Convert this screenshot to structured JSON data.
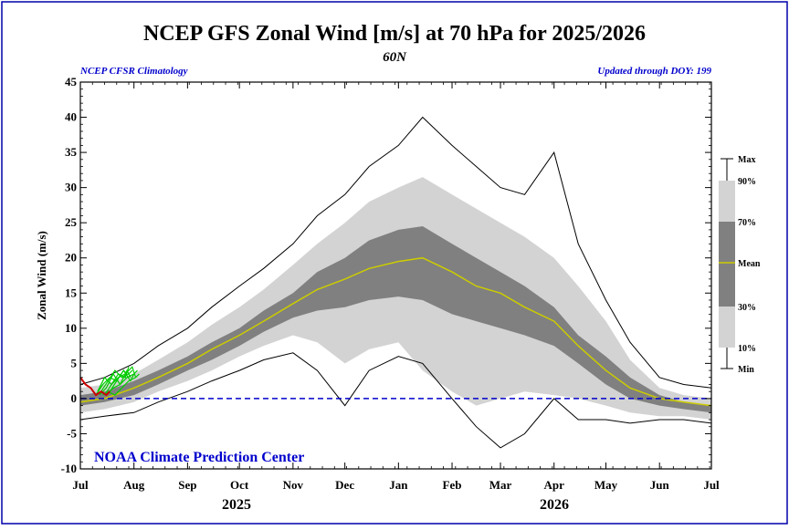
{
  "header": {
    "title": "NCEP GFS Zonal Wind [m/s] at 70 hPa for 2025/2026",
    "subtitle": "60N",
    "left_note": "NCEP CFSR Climatology",
    "right_note": "Updated through DOY: 199",
    "credit": "NOAA Climate Prediction Center"
  },
  "colors": {
    "outer_band": "#d3d3d3",
    "inner_band": "#808080",
    "mean": "#cccc00",
    "observed": "#cc0000",
    "forecast": "#00cc00",
    "zero_line": "#0000cc",
    "frame": "#0000aa"
  },
  "chart_data": {
    "type": "line",
    "title": "NCEP GFS Zonal Wind [m/s] at 70 hPa for 2025/2026",
    "subtitle": "60N",
    "ylabel": "Zonal Wind (m/s)",
    "xlabel": "",
    "ylim": [
      -10,
      45
    ],
    "yticks": [
      "-10",
      "-5",
      "0",
      "5",
      "10",
      "15",
      "20",
      "25",
      "30",
      "35",
      "40",
      "45"
    ],
    "xlim": [
      "2025-07-01",
      "2026-07-01"
    ],
    "xtick_labels": [
      "Jul",
      "Aug",
      "Sep",
      "Oct",
      "Nov",
      "Dec",
      "Jan",
      "Feb",
      "Mar",
      "Apr",
      "May",
      "Jun",
      "Jul"
    ],
    "xtick_dates": [
      "2025-07-01",
      "2025-08-01",
      "2025-09-01",
      "2025-10-01",
      "2025-11-01",
      "2025-12-01",
      "2026-01-01",
      "2026-02-01",
      "2026-03-01",
      "2026-04-01",
      "2026-05-01",
      "2026-06-01",
      "2026-07-01"
    ],
    "years": [
      "2025",
      "2026"
    ],
    "grid": false,
    "legend": {
      "placement": "right",
      "labels": [
        "Max",
        "90%",
        "70%",
        "Mean",
        "30%",
        "10%",
        "Min"
      ]
    },
    "x": [
      "2025-07-01",
      "2025-07-15",
      "2025-08-01",
      "2025-08-15",
      "2025-09-01",
      "2025-09-15",
      "2025-10-01",
      "2025-10-15",
      "2025-11-01",
      "2025-11-15",
      "2025-12-01",
      "2025-12-15",
      "2026-01-01",
      "2026-01-15",
      "2026-02-01",
      "2026-02-15",
      "2026-03-01",
      "2026-03-15",
      "2026-04-01",
      "2026-04-15",
      "2026-05-01",
      "2026-05-15",
      "2026-06-01",
      "2026-06-15",
      "2026-07-01"
    ],
    "series": [
      {
        "name": "Max",
        "values": [
          2,
          3,
          5,
          7.5,
          10,
          13,
          16,
          18.5,
          22,
          26,
          29,
          33,
          36,
          40,
          36,
          33,
          30,
          29,
          35,
          22,
          14,
          8,
          3,
          2,
          1.5
        ]
      },
      {
        "name": "90%",
        "values": [
          1.5,
          2,
          3.5,
          5.5,
          8,
          10.5,
          13,
          15.5,
          19,
          22,
          25,
          28,
          30,
          31.5,
          29,
          27,
          25,
          23,
          20,
          16,
          11,
          5.5,
          1.5,
          0.5,
          0
        ]
      },
      {
        "name": "70%",
        "values": [
          0.5,
          1,
          2.5,
          4,
          6,
          8,
          10,
          12.5,
          15,
          18,
          20,
          22.5,
          24,
          24.5,
          22,
          20,
          18,
          16,
          13,
          9,
          6,
          3,
          0.5,
          -0.5,
          -1
        ]
      },
      {
        "name": "Mean",
        "values": [
          -0.5,
          0,
          1.5,
          3,
          5,
          7,
          9,
          11,
          13.5,
          15.5,
          17,
          18.5,
          19.5,
          20,
          18,
          16,
          15,
          13,
          11,
          7.5,
          4,
          1.5,
          0,
          -0.5,
          -1
        ]
      },
      {
        "name": "30%",
        "values": [
          -1,
          -0.5,
          0.5,
          2,
          4,
          5.5,
          7.5,
          9.5,
          11.5,
          12.5,
          13,
          14,
          14.5,
          14,
          12,
          11,
          10,
          9,
          7.5,
          5,
          2,
          0,
          -1,
          -1.5,
          -2
        ]
      },
      {
        "name": "10%",
        "values": [
          -2,
          -1.5,
          -0.5,
          1,
          2.5,
          4,
          6,
          7.5,
          9,
          8,
          5,
          7,
          8,
          4,
          1,
          -1,
          0,
          1,
          0.5,
          0,
          -1,
          -2,
          -2.5,
          -2.5,
          -3
        ]
      },
      {
        "name": "Min",
        "values": [
          -3,
          -2.5,
          -2,
          -0.5,
          1,
          2.5,
          4,
          5.5,
          6.5,
          4,
          -1,
          4,
          6,
          5,
          0,
          -4,
          -7,
          -5,
          0,
          -3,
          -3,
          -3.5,
          -3,
          -3,
          -3.5
        ]
      }
    ],
    "observed": {
      "name": "2025 observed",
      "x": [
        "2025-07-01",
        "2025-07-04",
        "2025-07-07",
        "2025-07-10",
        "2025-07-13",
        "2025-07-16",
        "2025-07-18"
      ],
      "values": [
        3,
        2,
        1.5,
        0.5,
        1,
        0.5,
        1
      ]
    },
    "forecasts": {
      "name": "GFS forecasts",
      "members": [
        {
          "x": [
            "2025-07-10",
            "2025-07-14",
            "2025-07-18",
            "2025-07-22",
            "2025-07-26",
            "2025-07-28"
          ],
          "values": [
            0.5,
            2,
            3,
            2.5,
            4,
            3.5
          ]
        },
        {
          "x": [
            "2025-07-11",
            "2025-07-15",
            "2025-07-19",
            "2025-07-23",
            "2025-07-27",
            "2025-07-29"
          ],
          "values": [
            1,
            3,
            2,
            3.5,
            3,
            4.5
          ]
        },
        {
          "x": [
            "2025-07-12",
            "2025-07-16",
            "2025-07-20",
            "2025-07-24",
            "2025-07-28",
            "2025-07-30"
          ],
          "values": [
            0.5,
            1.5,
            3.5,
            2,
            4,
            3
          ]
        },
        {
          "x": [
            "2025-07-13",
            "2025-07-17",
            "2025-07-21",
            "2025-07-25",
            "2025-07-29",
            "2025-07-31"
          ],
          "values": [
            1,
            2.5,
            4,
            3,
            3.5,
            4
          ]
        },
        {
          "x": [
            "2025-07-14",
            "2025-07-18",
            "2025-07-22",
            "2025-07-26",
            "2025-07-30",
            "2025-08-01"
          ],
          "values": [
            0.5,
            1,
            2.5,
            4,
            2.5,
            3.5
          ]
        },
        {
          "x": [
            "2025-07-15",
            "2025-07-19",
            "2025-07-23",
            "2025-07-27",
            "2025-07-31",
            "2025-08-02"
          ],
          "values": [
            0.5,
            2,
            3,
            3.5,
            4.5,
            3
          ]
        },
        {
          "x": [
            "2025-07-16",
            "2025-07-20",
            "2025-07-24",
            "2025-07-28",
            "2025-08-01",
            "2025-08-03"
          ],
          "values": [
            0.5,
            1.5,
            2,
            3,
            3.5,
            4
          ]
        },
        {
          "x": [
            "2025-07-17",
            "2025-07-21",
            "2025-07-25",
            "2025-07-29",
            "2025-08-02",
            "2025-08-04"
          ],
          "values": [
            1,
            0.5,
            1.5,
            2.5,
            3,
            3.5
          ]
        }
      ]
    }
  }
}
